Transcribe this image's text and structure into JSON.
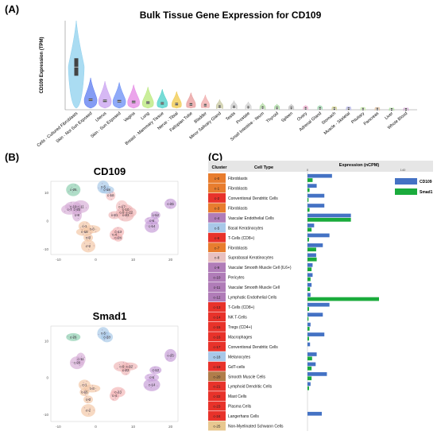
{
  "panels": {
    "a": "(A)",
    "b": "(B)",
    "c": "(C)"
  },
  "chart_data": [
    {
      "type": "violin",
      "title": "Bulk Tissue Gene Expression for CD109",
      "ylabel": "CD109 Expression (TPM)",
      "categories": [
        "Cells - Cultured Fibroblasts",
        "Skin - Not Sun Exposed",
        "Uterus",
        "Skin - Sun Exposed",
        "Vagina",
        "Lung",
        "Breast - Mammary Tissue",
        "Nerve - Tibial",
        "Fallopian Tube",
        "Bladder",
        "Minor Salivary Gland",
        "Testis",
        "Prostate",
        "Small Intestine - Ileum",
        "Thyroid",
        "Spleen",
        "Ovary",
        "Adrenal Gland",
        "Stomach",
        "Muscle - Skeletal",
        "Pituitary",
        "Pancreas",
        "Liver",
        "Whole Blood"
      ],
      "values": [
        120,
        28,
        25,
        24,
        22,
        20,
        18,
        16,
        15,
        13,
        9,
        8,
        7,
        6,
        5,
        5,
        4,
        4,
        3,
        3,
        2,
        2,
        1,
        1
      ],
      "ylim": [
        0,
        250
      ],
      "colors": [
        "#8ed0ee",
        "#5b7bf0",
        "#c8a0f0",
        "#6a8ef5",
        "#e487e4",
        "#b8e878",
        "#48d0c8",
        "#f0c848",
        "#e89a9a",
        "#f0a8a8",
        "#c8c8a0",
        "#c8c8c8",
        "#d0d0d0",
        "#b0d8a0",
        "#a8d8a0",
        "#c0c0c0",
        "#f0b0d0",
        "#a0d8b0",
        "#d0d090",
        "#b8b8e8",
        "#c8f0a8",
        "#e0c0a0",
        "#b0e0a0",
        "#d0a0d0"
      ]
    },
    {
      "type": "scatter",
      "title": "CD109",
      "xticks": [
        "-10",
        "0",
        "10",
        "20"
      ],
      "yticks": [
        "10",
        "0",
        "-10"
      ],
      "clusters": [
        {
          "name": "c-0",
          "x": -2,
          "y": -6,
          "color": "#f4c9a8"
        },
        {
          "name": "c-1",
          "x": -3,
          "y": -2,
          "color": "#f4c9a8"
        },
        {
          "name": "c-2",
          "x": -2,
          "y": -9,
          "color": "#f4c9a8"
        },
        {
          "name": "c-3",
          "x": -1,
          "y": -3,
          "color": "#f4c9a8"
        },
        {
          "name": "c-4",
          "x": 5,
          "y": -5,
          "color": "#f4b8b8"
        },
        {
          "name": "c-5",
          "x": 2,
          "y": 12,
          "color": "#aacbe8"
        },
        {
          "name": "c-6",
          "x": 15,
          "y": 0,
          "color": "#d0a8e0"
        },
        {
          "name": "c-7",
          "x": -7,
          "y": 4,
          "color": "#d8b0d8"
        },
        {
          "name": "c-8",
          "x": -5,
          "y": 2,
          "color": "#d8b0d8"
        },
        {
          "name": "c-9",
          "x": 7,
          "y": 3,
          "color": "#f0b8b8"
        },
        {
          "name": "c-10",
          "x": 8,
          "y": 4,
          "color": "#f0b8b8"
        },
        {
          "name": "c-11",
          "x": -4,
          "y": 5,
          "color": "#d8b0d8"
        },
        {
          "name": "c-12",
          "x": 16,
          "y": 2,
          "color": "#c8a0d8"
        },
        {
          "name": "c-13",
          "x": 6,
          "y": -4,
          "color": "#f4b8b8"
        },
        {
          "name": "c-14",
          "x": 15,
          "y": -2,
          "color": "#c8a0d8"
        },
        {
          "name": "c-15",
          "x": -3,
          "y": -4,
          "color": "#f4c9a8"
        },
        {
          "name": "c-16",
          "x": 4,
          "y": 9,
          "color": "#f4c0c0"
        },
        {
          "name": "c-17",
          "x": 7,
          "y": 5,
          "color": "#f4c0c0"
        },
        {
          "name": "c-18",
          "x": 3,
          "y": 11,
          "color": "#aacbe8"
        },
        {
          "name": "c-19",
          "x": -6,
          "y": 5,
          "color": "#d8b0d8"
        },
        {
          "name": "c-20",
          "x": -5,
          "y": 4,
          "color": "#d8b0d8"
        },
        {
          "name": "c-21",
          "x": 5,
          "y": 2,
          "color": "#f0b8b8"
        },
        {
          "name": "c-22",
          "x": 9,
          "y": 3,
          "color": "#f0b8b8"
        },
        {
          "name": "c-23",
          "x": 8,
          "y": 2,
          "color": "#f0b8b8"
        },
        {
          "name": "c-24",
          "x": 6,
          "y": -6,
          "color": "#f4b8b8"
        },
        {
          "name": "c-25",
          "x": 20,
          "y": 6,
          "color": "#c8a0d8"
        },
        {
          "name": "c-26",
          "x": -6,
          "y": 11,
          "color": "#8fd0b0"
        }
      ]
    },
    {
      "type": "scatter",
      "title": "Smad1",
      "xticks": [
        "-10",
        "0",
        "10",
        "20"
      ],
      "yticks": [
        "10",
        "0",
        "-10"
      ],
      "clusters": [
        {
          "name": "c-0",
          "x": -2,
          "y": -6,
          "color": "#f4c9a8"
        },
        {
          "name": "c-1",
          "x": -3,
          "y": -2,
          "color": "#f4c9a8"
        },
        {
          "name": "c-2",
          "x": -2,
          "y": -9,
          "color": "#f4c9a8"
        },
        {
          "name": "c-3",
          "x": -1,
          "y": -3,
          "color": "#f4c9a8"
        },
        {
          "name": "c-4",
          "x": 5,
          "y": -5,
          "color": "#f4b8b8"
        },
        {
          "name": "c-5",
          "x": 2,
          "y": 12,
          "color": "#aacbe8"
        },
        {
          "name": "c-6",
          "x": 15,
          "y": 0,
          "color": "#d0a8e0"
        },
        {
          "name": "c-9",
          "x": 7,
          "y": 3,
          "color": "#f0b8b8"
        },
        {
          "name": "c-11",
          "x": -4,
          "y": 5,
          "color": "#d8b0d8"
        },
        {
          "name": "c-12",
          "x": 16,
          "y": 2,
          "color": "#c8a0d8"
        },
        {
          "name": "c-13",
          "x": 6,
          "y": -4,
          "color": "#f4b8b8"
        },
        {
          "name": "c-14",
          "x": 15,
          "y": -2,
          "color": "#c8a0d8"
        },
        {
          "name": "c-15",
          "x": -3,
          "y": -4,
          "color": "#f4c9a8"
        },
        {
          "name": "c-18",
          "x": 3,
          "y": 11,
          "color": "#aacbe8"
        },
        {
          "name": "c-20",
          "x": -5,
          "y": 4,
          "color": "#d8b0d8"
        },
        {
          "name": "c-22",
          "x": 9,
          "y": 3,
          "color": "#f0b8b8"
        },
        {
          "name": "c-23",
          "x": 8,
          "y": 2,
          "color": "#f0b8b8"
        },
        {
          "name": "c-25",
          "x": 20,
          "y": 6,
          "color": "#c8a0d8"
        },
        {
          "name": "c-26",
          "x": -6,
          "y": 11,
          "color": "#8fd0b0"
        }
      ]
    },
    {
      "type": "bar",
      "header": {
        "cluster": "Cluster",
        "cell_type": "Cell Type",
        "expression": "Expression (nCPM)"
      },
      "axis_ticks": [
        "0",
        "140"
      ],
      "xlim": [
        0,
        140
      ],
      "legend": [
        "CD109",
        "Smad1"
      ],
      "series_colors": [
        "#4472c4",
        "#1aab3c"
      ],
      "clusters": [
        "c-0",
        "c-1",
        "c-2",
        "c-3",
        "c-4",
        "c-5",
        "c-6",
        "c-7",
        "c-8",
        "c-9",
        "c-10",
        "c-11",
        "c-12",
        "c-13",
        "c-14",
        "c-15",
        "c-16",
        "c-17",
        "c-18",
        "c-19",
        "c-20",
        "c-21",
        "c-22",
        "c-23",
        "c-24",
        "c-25"
      ],
      "cluster_colors": [
        "#e87d2e",
        "#e87d2e",
        "#e8322a",
        "#e87d2e",
        "#b07cb8",
        "#a8c8e8",
        "#e8322a",
        "#e87d2e",
        "#e8c0c0",
        "#b07cb8",
        "#b07cb8",
        "#b07cb8",
        "#b07cb8",
        "#e8322a",
        "#e8322a",
        "#e8322a",
        "#e8322a",
        "#e8322a",
        "#a8c8e8",
        "#e8322a",
        "#b07d4a",
        "#e8322a",
        "#e8322a",
        "#e8322a",
        "#e8322a",
        "#e8c890"
      ],
      "cell_types": [
        "Fibroblasts",
        "Fibroblasts",
        "Conventional Dendritic Cells",
        "Fibroblasts",
        "Vascular Endothelial Cells",
        "Basal Keratinocytes",
        "T-Cells (CD8+)",
        "Fibroblasts",
        "Suprabasal Keratinocytes",
        "Vascular Smooth Muscle Cell (IL6+)",
        "Pericytes",
        "Vascular Smooth Muscle Cell",
        "Lymphatic Endothelial Cells",
        "T-Cells (CD8+)",
        "NK T-Cells",
        "Tregs (CD4+)",
        "Macrophages",
        "Conventional Dendritic Cells",
        "Melanocytes",
        "GdT-cells",
        "Smooth Muscle Cells",
        "Lymphoid Dendritic Cells",
        "Mast Cells",
        "Plasma Cells",
        "Langerhans Cells",
        "Non-Myelinated Schwann Cells"
      ],
      "series": [
        {
          "name": "CD109",
          "values": [
            48,
            18,
            33,
            33,
            85,
            13,
            43,
            30,
            17,
            10,
            10,
            8,
            6,
            43,
            30,
            6,
            33,
            5,
            18,
            16,
            38,
            6,
            0,
            0,
            28,
            0
          ]
        },
        {
          "name": "Smad1",
          "values": [
            10,
            4,
            2,
            4,
            85,
            8,
            3,
            17,
            18,
            8,
            6,
            5,
            160,
            3,
            2,
            4,
            3,
            0,
            9,
            8,
            8,
            3,
            0,
            0,
            0,
            0
          ]
        }
      ]
    }
  ]
}
